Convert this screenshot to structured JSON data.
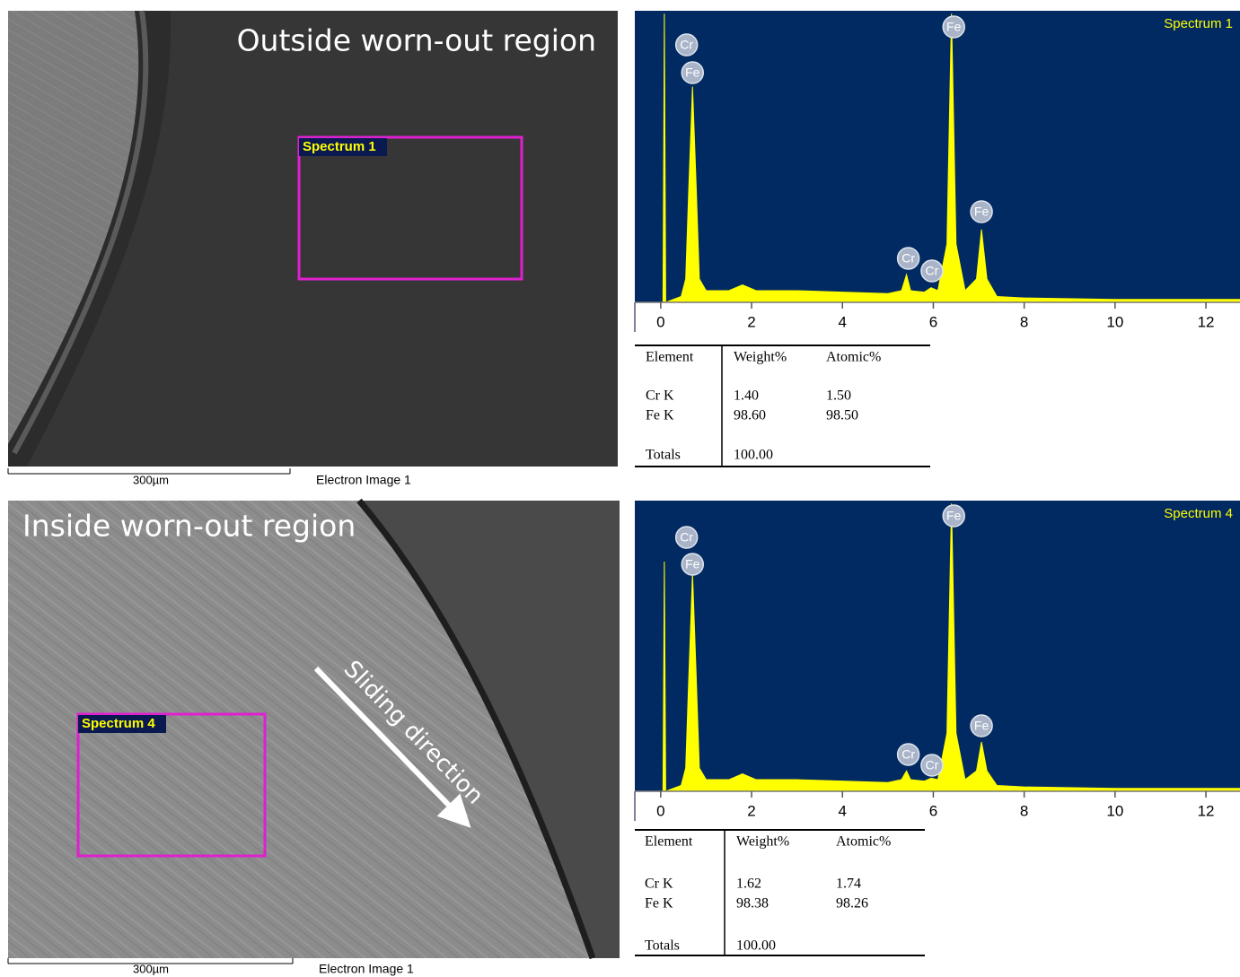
{
  "panels": [
    {
      "sem": {
        "title": "Outside worn-out region",
        "box_label": "Spectrum 1",
        "scale_bar": "300µm",
        "caption": "Electron Image 1"
      },
      "spectrum": {
        "type": "area",
        "label": "Spectrum 1",
        "color": "#ffff00",
        "background": "#012a62",
        "x": [
          0,
          0.05,
          0.08,
          0.11,
          0.45,
          0.55,
          0.62,
          0.7,
          0.78,
          0.85,
          1.0,
          1.5,
          1.8,
          2.1,
          3,
          4,
          5,
          5.3,
          5.41,
          5.5,
          5.8,
          5.95,
          6.1,
          6.3,
          6.4,
          6.5,
          6.7,
          6.95,
          7.06,
          7.18,
          7.4,
          8,
          10,
          12.75
        ],
        "values": [
          0,
          0,
          99,
          0,
          2,
          8,
          40,
          74,
          40,
          8,
          4,
          4,
          6,
          4,
          4,
          3.5,
          3,
          4,
          9.5,
          4,
          3.5,
          5,
          4,
          20,
          99,
          20,
          4,
          8,
          25,
          8,
          2,
          1.5,
          1,
          1
        ],
        "xlim": [
          -0.57,
          12.75
        ],
        "xticks": [
          0,
          2,
          4,
          6,
          8,
          10,
          12
        ],
        "ylim": [
          0,
          100
        ],
        "peak_labels": [
          "Cr",
          "Fe",
          "Fe",
          "Fe",
          "Cr",
          "Cr"
        ]
      },
      "table": {
        "header": [
          "Element",
          "Weight%",
          "Atomic%"
        ],
        "rows": [
          [
            "Cr K",
            "1.40",
            "1.50"
          ],
          [
            "Fe K",
            "98.60",
            "98.50"
          ],
          [
            "Totals",
            "100.00"
          ]
        ]
      }
    },
    {
      "sem": {
        "title": "Inside worn-out region",
        "box_label": "Spectrum 4",
        "scale_bar": "300µm",
        "caption": "Electron Image 1",
        "arrow_label": "Sliding direction"
      },
      "spectrum": {
        "type": "area",
        "label": "Spectrum 4",
        "color": "#ffff00",
        "background": "#012a62",
        "x": [
          0,
          0.05,
          0.08,
          0.11,
          0.45,
          0.55,
          0.62,
          0.7,
          0.78,
          0.85,
          1.0,
          1.5,
          1.8,
          2.1,
          3,
          4,
          5,
          5.3,
          5.41,
          5.5,
          5.8,
          5.95,
          6.1,
          6.3,
          6.4,
          6.5,
          6.7,
          6.95,
          7.06,
          7.18,
          7.4,
          8,
          10,
          12.75
        ],
        "values": [
          0,
          0,
          79,
          0,
          2,
          8,
          40,
          75,
          40,
          8,
          4,
          4,
          6,
          4,
          4,
          3.5,
          3,
          4,
          7,
          4,
          3.5,
          4.5,
          4,
          20,
          99,
          20,
          4,
          7,
          17,
          7,
          2,
          1.5,
          1,
          1
        ],
        "xlim": [
          -0.57,
          12.75
        ],
        "xticks": [
          0,
          2,
          4,
          6,
          8,
          10,
          12
        ],
        "ylim": [
          0,
          100
        ],
        "peak_labels": [
          "Cr",
          "Fe",
          "Fe",
          "Fe",
          "Cr",
          "Cr"
        ]
      },
      "table": {
        "header": [
          "Element",
          "Weight%",
          "Atomic%"
        ],
        "rows": [
          [
            "Cr K",
            "1.62",
            "1.74"
          ],
          [
            "Fe K",
            "98.38",
            "98.26"
          ],
          [
            "Totals",
            "100.00"
          ]
        ]
      }
    }
  ]
}
